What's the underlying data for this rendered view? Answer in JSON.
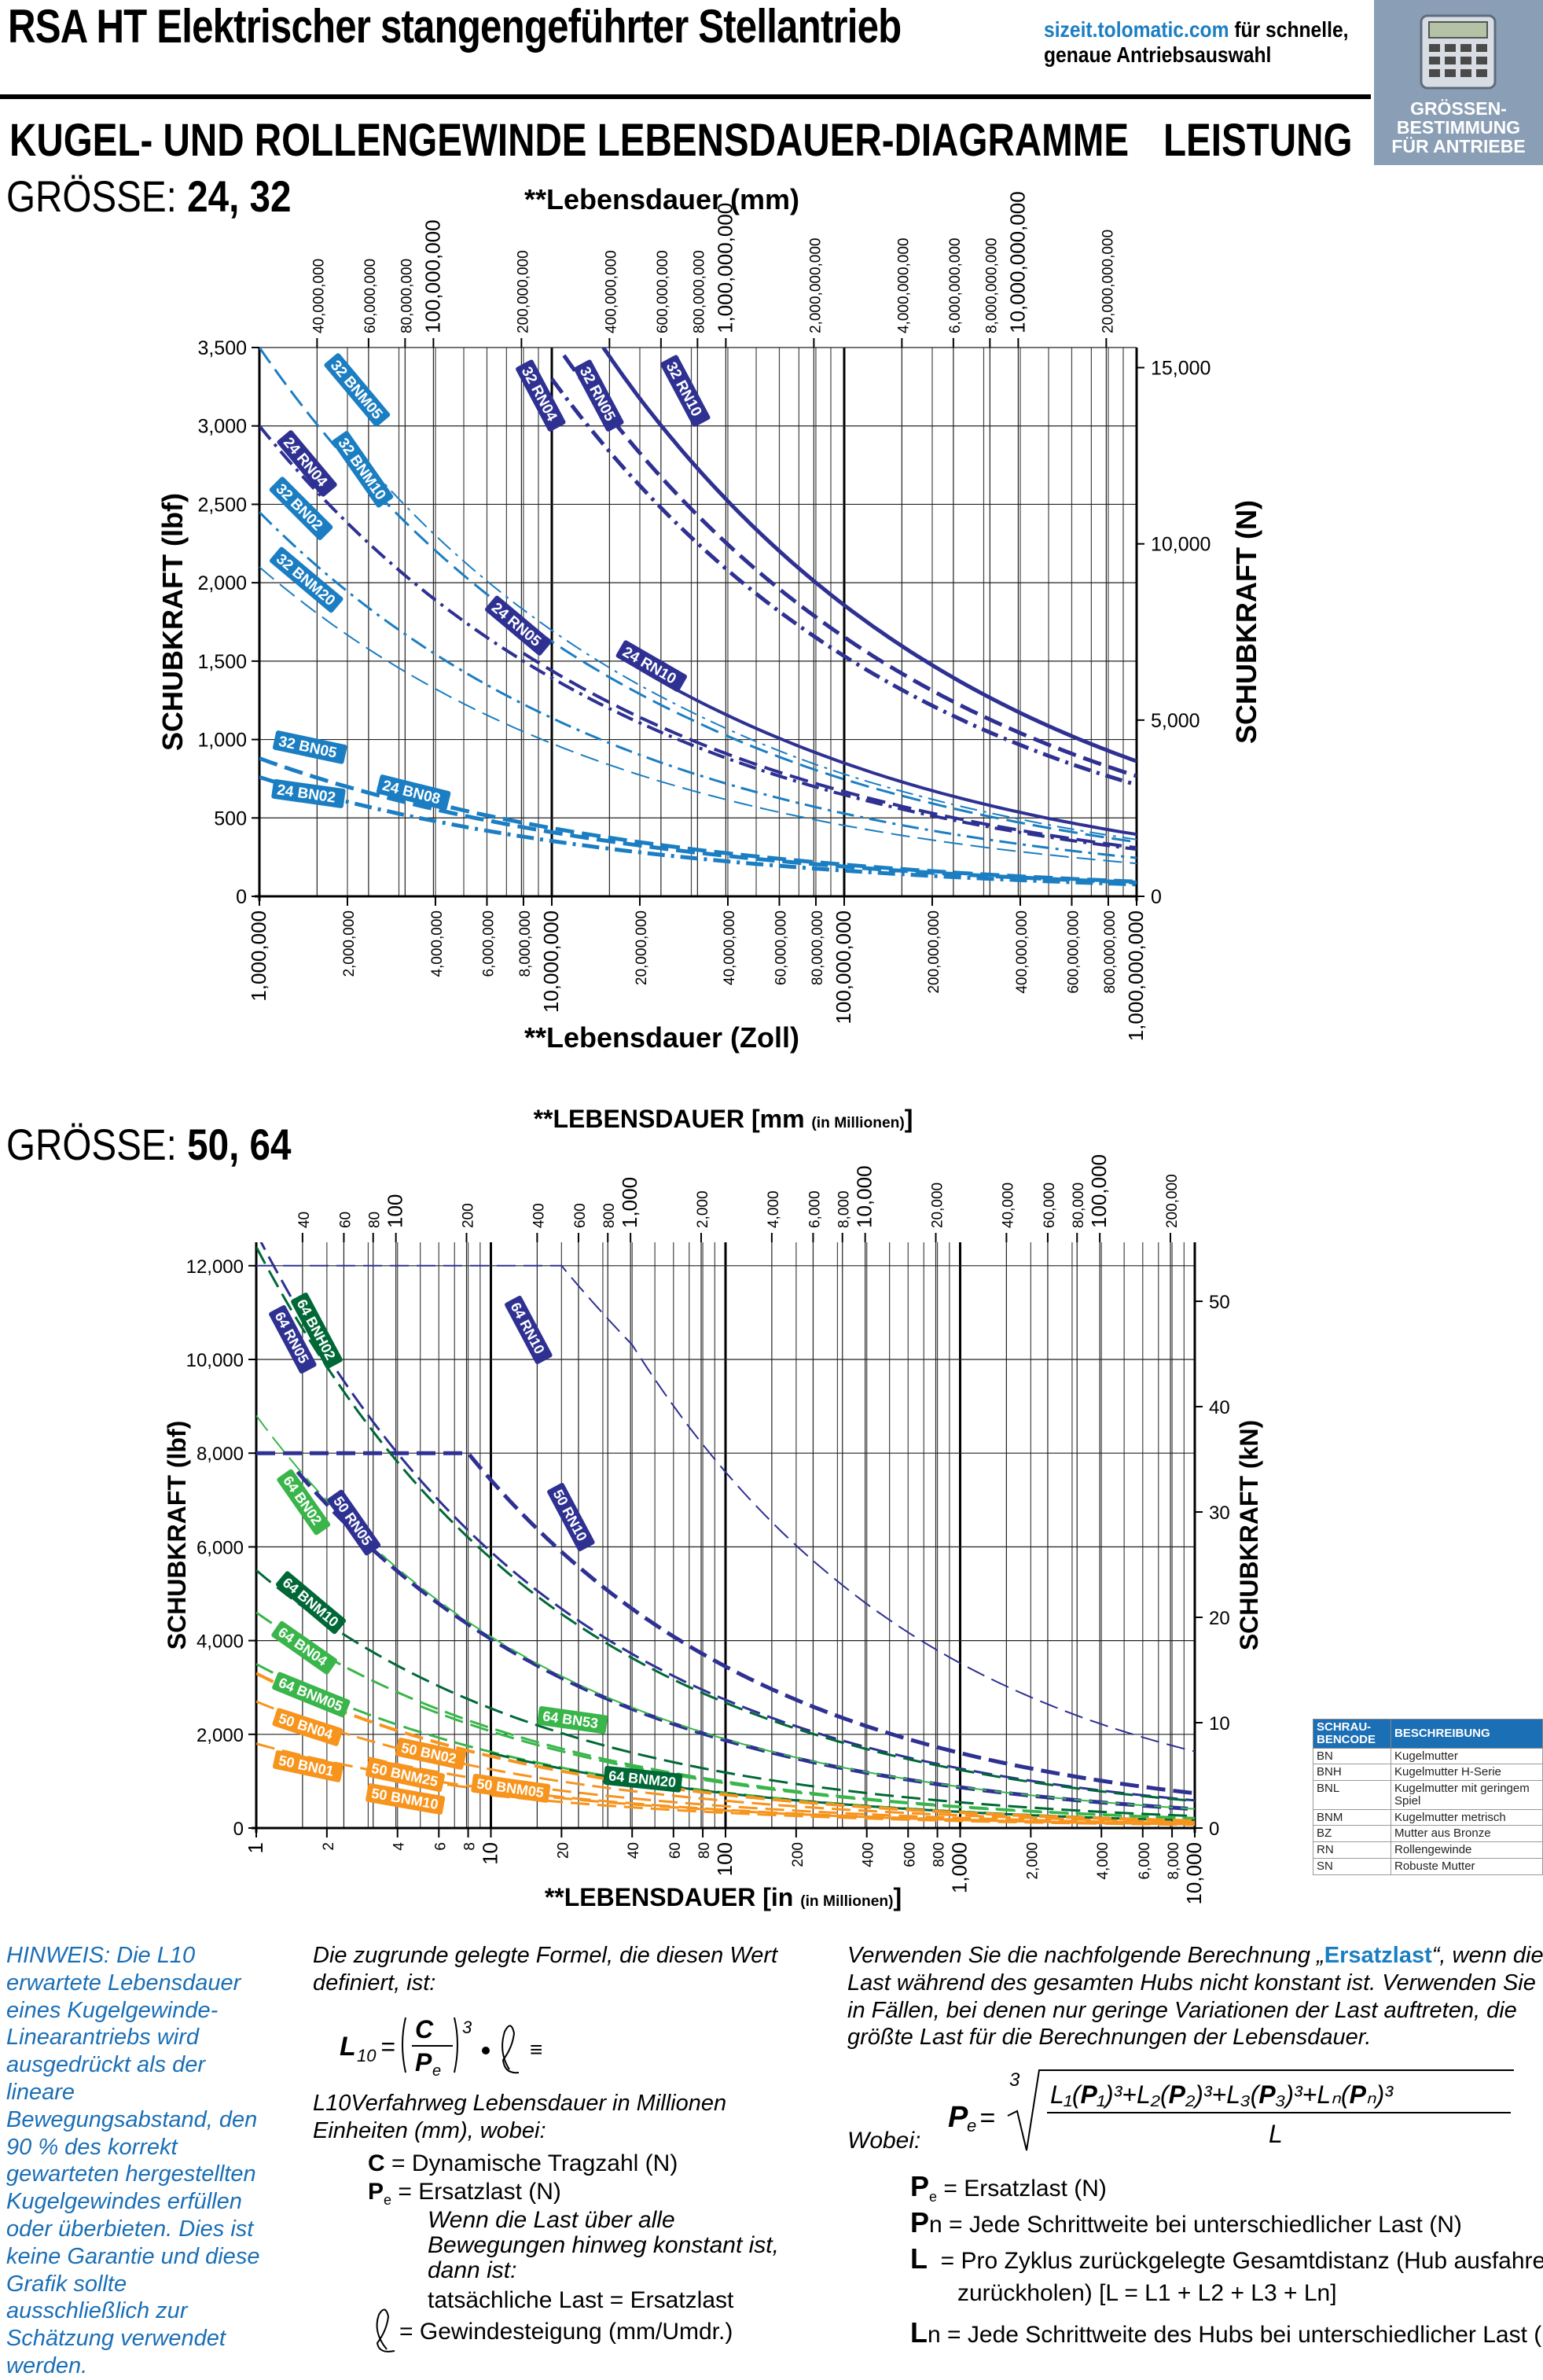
{
  "header": {
    "title": "RSA HT Elektrischer stangengeführter Stellantrieb",
    "url": "sizeit.tolomatic.com",
    "url_rest": " für schnelle,",
    "url_line2": "genaue Antriebsauswahl",
    "sizing_label_1": "GRÖSSEN-",
    "sizing_label_2": "BESTIMMUNG",
    "sizing_label_3": "FÜR ANTRIEBE",
    "subtitle": "KUGEL- UND ROLLENGEWINDE LEBENSDAUER-DIAGRAMME",
    "section": "LEISTUNG"
  },
  "chart1": {
    "size_prefix": "GRÖSSE:",
    "size_values": "24, 32",
    "title_top": "**Lebensdauer (mm)",
    "title_bottom": "**Lebensdauer (Zoll)",
    "ylabel_left": "SCHUBKRAFT (lbf)",
    "ylabel_right": "SCHUBKRAFT (N)"
  },
  "chart2": {
    "size_prefix": "GRÖSSE:",
    "size_values": "50, 64",
    "title_top": "**LEBENSDAUER [mm",
    "title_top_small": "(in Millionen)",
    "title_top_end": "]",
    "title_bottom": "**LEBENSDAUER [in",
    "title_bottom_small": "(in Millionen)",
    "title_bottom_end": "]",
    "ylabel_left": "SCHUBKRAFT (lbf)",
    "ylabel_right": "SCHUBKRAFT (kN)"
  },
  "chart_data": [
    {
      "type": "line",
      "x_scale": "log",
      "xlim": [
        1000000,
        1000000000
      ],
      "ylim": [
        0,
        3500
      ],
      "ylim_right": [
        0,
        15570
      ],
      "xlabel": "**Lebensdauer (Zoll)",
      "x2label": "**Lebensdauer (mm)",
      "ylabel": "SCHUBKRAFT (lbf)",
      "y2label": "SCHUBKRAFT (N)",
      "x_ticks": [
        "1,000,000",
        "2,000,000",
        "4,000,000",
        "6,000,000",
        "8,000,000",
        "10,000,000",
        "20,000,000",
        "40,000,000",
        "60,000,000",
        "80,000,000",
        "100,000,000",
        "200,000,000",
        "400,000,000",
        "600,000,000",
        "800,000,000",
        "1,000,000,000"
      ],
      "x2_ticks": [
        "40,000,000",
        "60,000,000",
        "80,000,000",
        "100,000,000",
        "200,000,000",
        "400,000,000",
        "600,000,000",
        "800,000,000",
        "1,000,000,000",
        "2,000,000,000",
        "4,000,000,000",
        "6,000,000,000",
        "8,000,000,000",
        "10,000,000,000",
        "20,000,000,000"
      ],
      "y_ticks": [
        "0",
        "500",
        "1,000",
        "1,500",
        "2,000",
        "2,500",
        "3,000",
        "3,500"
      ],
      "y2_ticks": [
        "0",
        "5,000",
        "10,000",
        "15,000"
      ],
      "grid": true,
      "series": [
        {
          "name": "32 RN10",
          "color": "#2e3192",
          "dash": "solid",
          "width": 5,
          "x": [
            15000000,
            20000000,
            30000000,
            50000000,
            100000000,
            200000000,
            500000000,
            1000000000
          ],
          "y": [
            3500,
            3175,
            2774,
            2340,
            1857,
            1474,
            1086,
            862
          ]
        },
        {
          "name": "24 RN10",
          "color": "#2e3192",
          "dash": "solid",
          "width": 4,
          "x": [
            20000000,
            50000000,
            100000000,
            200000000,
            500000000,
            1000000000
          ],
          "y": [
            1450,
            1071,
            850,
            674,
            497,
            395
          ]
        },
        {
          "name": "32 RN05",
          "color": "#2e3192",
          "dash": "longdash",
          "width": 5,
          "x": [
            11000000,
            20000000,
            50000000,
            100000000,
            200000000,
            500000000,
            1000000000
          ],
          "y": [
            3450,
            2827,
            2083,
            1653,
            1312,
            967,
            767
          ]
        },
        {
          "name": "32 RN04",
          "color": "#2e3192",
          "dash": "dashdot",
          "width": 5,
          "x": [
            10000000,
            20000000,
            50000000,
            100000000,
            200000000,
            500000000,
            1000000000
          ],
          "y": [
            3300,
            2619,
            1930,
            1532,
            1216,
            896,
            711
          ]
        },
        {
          "name": "24 RN05",
          "color": "#2e3192",
          "dash": "longdash",
          "width": 4,
          "x": [
            8000000,
            20000000,
            50000000,
            100000000,
            300000000,
            1000000000
          ],
          "y": [
            1550,
            1142,
            841,
            668,
            463,
            310
          ]
        },
        {
          "name": "24 RN04",
          "color": "#2e3192",
          "dash": "dashdot",
          "width": 4,
          "x": [
            1000000,
            2000000,
            4000000,
            8000000,
            20000000,
            100000000,
            1000000000
          ],
          "y": [
            3000,
            2381,
            1890,
            1500,
            1106,
            647,
            300
          ]
        },
        {
          "name": "32 BNM05",
          "color": "#1b7ec2",
          "dash": "longdash",
          "width": 3,
          "x": [
            1000000,
            2000000,
            5000000,
            10000000,
            30000000,
            100000000,
            1000000000
          ],
          "y": [
            3500,
            2778,
            2047,
            1625,
            1127,
            746,
            346
          ]
        },
        {
          "name": "32 BNM10",
          "color": "#1b7ec2",
          "dash": "dashdot",
          "width": 2,
          "x": [
            2000000,
            5000000,
            10000000,
            30000000,
            100000000,
            1000000000
          ],
          "y": [
            2900,
            2137,
            1696,
            1176,
            779,
            362
          ]
        },
        {
          "name": "32 BN02",
          "color": "#1b7ec2",
          "dash": "dashdot",
          "width": 3,
          "x": [
            1000000,
            3000000,
            10000000,
            30000000,
            100000000,
            1000000000
          ],
          "y": [
            2450,
            1699,
            1137,
            788,
            528,
            245
          ]
        },
        {
          "name": "32 BNM20",
          "color": "#1b7ec2",
          "dash": "longdash",
          "width": 2,
          "x": [
            1000000,
            3000000,
            10000000,
            30000000,
            100000000,
            1000000000
          ],
          "y": [
            2100,
            1456,
            975,
            676,
            452,
            210
          ]
        },
        {
          "name": "32 BN05",
          "color": "#1b7ec2",
          "dash": "longdash",
          "width": 5,
          "x": [
            1000000,
            3000000,
            10000000,
            30000000,
            100000000,
            1000000000
          ],
          "y": [
            880,
            610,
            409,
            283,
            190,
            88
          ]
        },
        {
          "name": "24 BN02",
          "color": "#1b7ec2",
          "dash": "dashdot",
          "width": 5,
          "x": [
            1000000,
            3000000,
            10000000,
            30000000,
            100000000,
            1000000000
          ],
          "y": [
            760,
            527,
            353,
            245,
            164,
            76
          ]
        },
        {
          "name": "24 BN08",
          "color": "#1b7ec2",
          "dash": "longdash",
          "width": 5,
          "x": [
            3000000,
            10000000,
            30000000,
            100000000,
            1000000000
          ],
          "y": [
            650,
            435,
            302,
            202,
            94
          ]
        }
      ]
    },
    {
      "type": "line",
      "x_scale": "log",
      "xlim": [
        1,
        10000
      ],
      "ylim": [
        0,
        12500
      ],
      "ylim_right": [
        0,
        55.6
      ],
      "xlabel": "**LEBENSDAUER [in (in Millionen)]",
      "x2label": "**LEBENSDAUER [mm (in Millionen)]",
      "ylabel": "SCHUBKRAFT (lbf)",
      "y2label": "SCHUBKRAFT (kN)",
      "x_ticks": [
        "1",
        "2",
        "4",
        "6",
        "8",
        "10",
        "20",
        "40",
        "60",
        "80",
        "100",
        "200",
        "400",
        "600",
        "800",
        "1,000",
        "2,000",
        "4,000",
        "6,000",
        "8,000",
        "10,000"
      ],
      "x2_ticks": [
        "40",
        "60",
        "80",
        "100",
        "200",
        "400",
        "600",
        "800",
        "1,000",
        "2,000",
        "4,000",
        "6,000",
        "8,000",
        "10,000",
        "20,000",
        "40,000",
        "60,000",
        "80,000",
        "100,000",
        "200,000"
      ],
      "y_ticks": [
        "0",
        "2,000",
        "4,000",
        "6,000",
        "8,000",
        "10,000",
        "12,000"
      ],
      "y2_ticks": [
        "0",
        "10",
        "20",
        "30",
        "40",
        "50"
      ],
      "grid": true,
      "series": [
        {
          "name": "64 RN10",
          "color": "#2e3192",
          "dash": "longdash",
          "width": 2,
          "x": [
            1,
            20,
            40,
            100,
            300,
            1000,
            3000,
            10000
          ],
          "y": [
            12000,
            12000,
            10314,
            7597,
            5268,
            3519,
            2440,
            1634
          ]
        },
        {
          "name": "50 RN10",
          "color": "#2e3192",
          "dash": "longdash",
          "width": 5,
          "x": [
            1,
            8,
            10,
            30,
            100,
            300,
            1000,
            10000
          ],
          "y": [
            8000,
            8000,
            7427,
            5150,
            3447,
            2391,
            1601,
            743
          ]
        },
        {
          "name": "50 RN05",
          "color": "#2e3192",
          "dash": "longdash",
          "width": 5,
          "x": [
            1.5,
            3,
            10,
            30,
            100,
            300,
            1000,
            10000
          ],
          "y": [
            7600,
            6032,
            4037,
            2799,
            1874,
            1299,
            870,
            404
          ]
        },
        {
          "name": "64 RN05",
          "color": "#2e3192",
          "dash": "longdash",
          "width": 3,
          "x": [
            1,
            2,
            5,
            10,
            30,
            100,
            1000,
            10000
          ],
          "y": [
            12700,
            10080,
            7428,
            5895,
            4088,
            2736,
            1270,
            590
          ]
        },
        {
          "name": "64 BNH02",
          "color": "#006837",
          "dash": "longdash",
          "width": 3,
          "x": [
            1,
            2,
            5,
            10,
            30,
            100,
            1000,
            10000
          ],
          "y": [
            12400,
            9842,
            7253,
            5756,
            3991,
            2672,
            1240,
            576
          ]
        },
        {
          "name": "64 BN02",
          "color": "#39b54a",
          "dash": "longdash",
          "width": 2,
          "x": [
            1,
            3,
            10,
            30,
            100,
            1000,
            10000
          ],
          "y": [
            8800,
            6101,
            4085,
            2832,
            1896,
            880,
            408
          ]
        },
        {
          "name": "64 BNM10",
          "color": "#006837",
          "dash": "longdash",
          "width": 3,
          "x": [
            1,
            3,
            10,
            30,
            100,
            1000,
            10000
          ],
          "y": [
            5500,
            3813,
            2553,
            1770,
            1185,
            550,
            255
          ]
        },
        {
          "name": "64 BN04",
          "color": "#39b54a",
          "dash": "longdash",
          "width": 3,
          "x": [
            1,
            3,
            10,
            30,
            100,
            1000,
            10000
          ],
          "y": [
            4600,
            3189,
            2135,
            1480,
            991,
            460,
            214
          ]
        },
        {
          "name": "64 BNM05",
          "color": "#39b54a",
          "dash": "longdash",
          "width": 3,
          "x": [
            1,
            3,
            10,
            30,
            100,
            1000,
            10000
          ],
          "y": [
            3500,
            2427,
            1625,
            1126,
            754,
            350,
            162
          ]
        },
        {
          "name": "64 BN53",
          "color": "#39b54a",
          "dash": "longdash",
          "width": 3,
          "x": [
            5,
            30,
            100,
            1000,
            10000
          ],
          "y": [
            2600,
            1430,
            958,
            444,
            206
          ]
        },
        {
          "name": "64 BNM20",
          "color": "#006837",
          "dash": "longdash",
          "width": 3,
          "x": [
            10,
            30,
            100,
            1000,
            10000
          ],
          "y": [
            1600,
            1109,
            743,
            345,
            160
          ]
        },
        {
          "name": "50 BN04",
          "color": "#f7941d",
          "dash": "longdash",
          "width": 4,
          "x": [
            1,
            3,
            10,
            30,
            100,
            1000,
            10000
          ],
          "y": [
            3300,
            2288,
            1532,
            1062,
            711,
            330,
            153
          ]
        },
        {
          "name": "50 BN02",
          "color": "#f7941d",
          "dash": "longdash",
          "width": 3,
          "x": [
            1,
            3,
            10,
            30,
            100,
            1000,
            10000
          ],
          "y": [
            2700,
            1872,
            1253,
            869,
            582,
            270,
            125
          ]
        },
        {
          "name": "50 BNM25",
          "color": "#f7941d",
          "dash": "longdash",
          "width": 3,
          "x": [
            3,
            10,
            30,
            100,
            1000,
            10000
          ],
          "y": [
            1500,
            1005,
            697,
            467,
            216,
            100
          ]
        },
        {
          "name": "50 BNM10",
          "color": "#f7941d",
          "dash": "longdash",
          "width": 3,
          "x": [
            3,
            10,
            30,
            100,
            1000,
            10000
          ],
          "y": [
            1200,
            804,
            557,
            373,
            173,
            80
          ]
        },
        {
          "name": "50 BNM05",
          "color": "#f7941d",
          "dash": "longdash",
          "width": 3,
          "x": [
            10,
            30,
            100,
            1000,
            10000
          ],
          "y": [
            700,
            485,
            325,
            151,
            70
          ]
        },
        {
          "name": "50 BN01",
          "color": "#f7941d",
          "dash": "longdash",
          "width": 3,
          "x": [
            1,
            3,
            10,
            30,
            100,
            1000,
            10000
          ],
          "y": [
            1800,
            1248,
            836,
            579,
            388,
            180,
            84
          ]
        }
      ]
    }
  ],
  "legend_table": {
    "header_code": "SCHRAU-BENCODE",
    "header_desc": "BESCHREIBUNG",
    "rows": [
      {
        "code": "BN",
        "desc": "Kugelmutter"
      },
      {
        "code": "BNH",
        "desc": "Kugelmutter H-Serie"
      },
      {
        "code": "BNL",
        "desc": "Kugelmutter mit geringem Spiel"
      },
      {
        "code": "BNM",
        "desc": "Kugelmutter metrisch"
      },
      {
        "code": "BZ",
        "desc": "Mutter aus Bronze"
      },
      {
        "code": "RN",
        "desc": "Rollengewinde"
      },
      {
        "code": "SN",
        "desc": "Robuste Mutter"
      }
    ]
  },
  "notes": {
    "hint": "HINWEIS: Die L10 erwartete Lebensdauer eines Kugelgewinde-Linearantriebs wird ausgedrückt als der lineare Bewegungsabstand, den 90 % des korrekt gewarteten hergestellten Kugelgewindes erfüllen oder überbieten. Dies ist keine Garantie und diese Grafik sollte ausschließlich zur Schätzung verwendet werden.",
    "formula_intro": "Die zugrunde gelegte Formel, die diesen Wert definiert, ist:",
    "formula_desc": "L10Verfahrweg Lebensdauer in Millionen Einheiten (mm), wobei:",
    "c_def": "= Dynamische Tragzahl (N)",
    "pe_def": "= Ersatzlast (N)",
    "pe_sub1": "Wenn die Last über alle",
    "pe_sub2": "Bewegungen hinweg konstant ist,",
    "pe_sub3": "dann ist:",
    "pe_sub4": "tatsächliche Last = Ersatzlast",
    "l_def": "= Gewindesteigung (mm/Umdr.)",
    "calc_intro_1": "Verwenden Sie die nachfolgende Berechnung „",
    "calc_term": "Ersatzlast",
    "calc_intro_2": "“, wenn die Last während des gesamten Hubs nicht konstant ist. Verwenden Sie in Fällen, bei denen nur geringe Variationen der Last auftreten, die größte Last für die Berechnungen der Lebensdauer.",
    "wobei": "Wobei:",
    "def_pe": "= Ersatzlast (N)",
    "def_pn": "= Jede Schrittweite bei unterschiedlicher Last (N)",
    "def_l": "= Pro Zyklus zurückgelegte Gesamtdistanz (Hub ausfahren +",
    "def_l2": "zurückholen) [L = L1 + L2 + L3 + Ln]",
    "def_ln": "= Jede Schrittweite des Hubs bei unterschiedlicher Last (mm)"
  }
}
